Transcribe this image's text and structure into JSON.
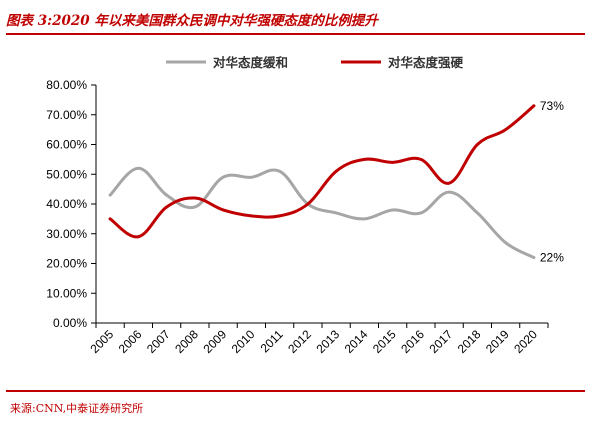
{
  "header": {
    "figure_title": "图表 3:2020 年以来美国群众民调中对华强硬态度的比例提升"
  },
  "footer": {
    "source_text": "来源:CNN,中泰证券研究所"
  },
  "colors": {
    "brand_red": "#c00000",
    "series_soft": "#a6a6a6",
    "series_hard": "#c00000"
  },
  "chart_data": {
    "type": "line",
    "title": "",
    "xlabel": "",
    "ylabel": "",
    "x": [
      "2005",
      "2006",
      "2007",
      "2008",
      "2009",
      "2010",
      "2011",
      "2012",
      "2013",
      "2014",
      "2015",
      "2016",
      "2017",
      "2018",
      "2019",
      "2020"
    ],
    "ylim": [
      0,
      80
    ],
    "yticks": [
      "0.00%",
      "10.00%",
      "20.00%",
      "30.00%",
      "40.00%",
      "50.00%",
      "60.00%",
      "70.00%",
      "80.00%"
    ],
    "legend_position": "top",
    "grid": false,
    "series": [
      {
        "name": "对华态度缓和",
        "color": "#a6a6a6",
        "values": [
          43,
          52,
          43,
          39,
          49,
          49,
          51,
          40,
          37,
          35,
          38,
          37,
          44,
          37,
          27,
          22
        ],
        "end_label": "22%"
      },
      {
        "name": "对华态度强硬",
        "color": "#c00000",
        "values": [
          35,
          29,
          39,
          42,
          38,
          36,
          36,
          40,
          51,
          55,
          54,
          55,
          47,
          60,
          65,
          73
        ],
        "end_label": "73%"
      }
    ]
  }
}
